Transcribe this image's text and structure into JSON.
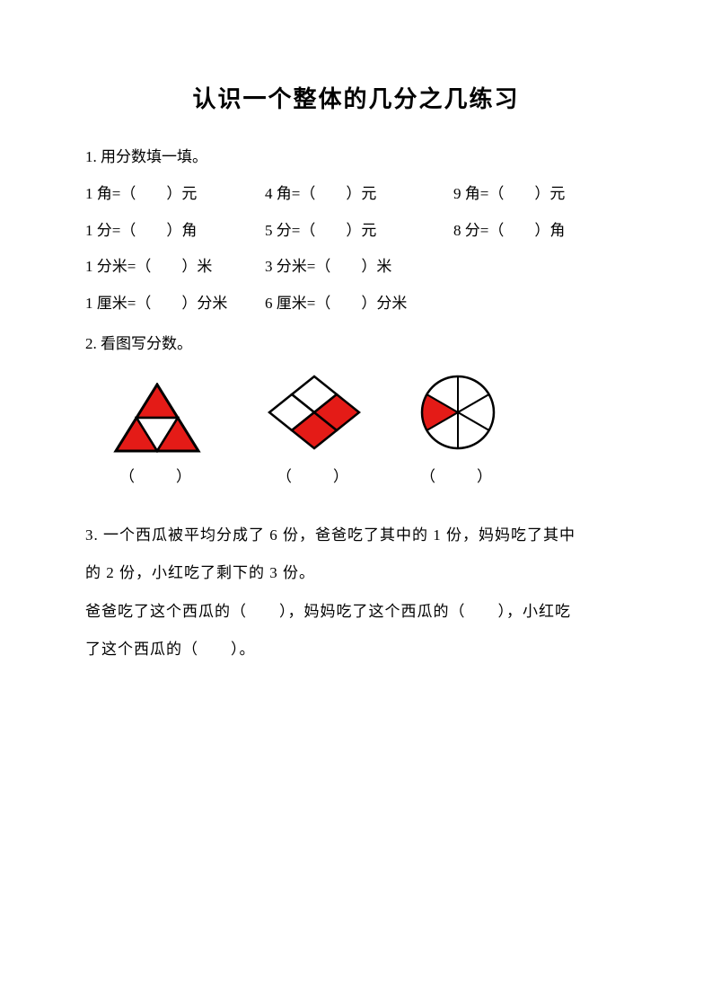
{
  "colors": {
    "text": "#000000",
    "background": "#ffffff",
    "shape_fill": "#e41b17",
    "shape_stroke": "#000000"
  },
  "title": "认识一个整体的几分之几练习",
  "q1": {
    "prompt": "1. 用分数填一填。",
    "rows": [
      [
        "1 角=（　　）元",
        "4 角=（　　）元",
        "9 角=（　　）元"
      ],
      [
        "1 分=（　　）角",
        "5 分=（　　）元",
        "8 分=（　　）角"
      ],
      [
        "1 分米=（　　）米",
        "3 分米=（　　）米"
      ],
      [
        "1 厘米=（　　）分米",
        "6 厘米=（　　）分米"
      ]
    ]
  },
  "q2": {
    "prompt": "2. 看图写分数。",
    "figures": [
      {
        "type": "triangle4",
        "width": 100,
        "height": 78,
        "fill_indices": [
          0,
          2,
          3
        ],
        "caption": "（　　）"
      },
      {
        "type": "diamond4",
        "width": 110,
        "height": 90,
        "fill_indices": [
          2,
          3
        ],
        "caption": "（　　）"
      },
      {
        "type": "pie6",
        "width": 90,
        "height": 90,
        "fill_indices": [
          4
        ],
        "caption": "（　　）"
      }
    ],
    "spacing": [
      0,
      70,
      60
    ]
  },
  "q3": {
    "line1": "3. 一个西瓜被平均分成了 6 份，爸爸吃了其中的 1 份，妈妈吃了其中",
    "line2": "的 2 份，小红吃了剩下的 3 份。",
    "line3": "爸爸吃了这个西瓜的（　　），妈妈吃了这个西瓜的（　　），小红吃",
    "line4": "了这个西瓜的（　　）。"
  }
}
